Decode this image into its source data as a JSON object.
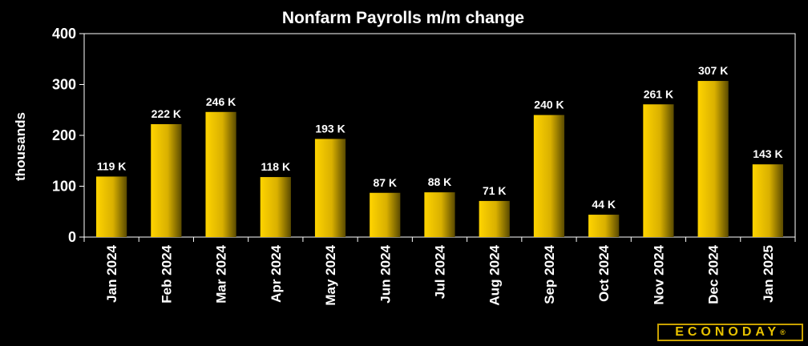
{
  "chart_data": {
    "type": "bar",
    "title": "Nonfarm Payrolls m/m change",
    "ylabel": "thousands",
    "xlabel": "",
    "ylim": [
      0,
      400
    ],
    "yticks": [
      "0",
      "100",
      "200",
      "300",
      "400"
    ],
    "categories": [
      "Jan 2024",
      "Feb 2024",
      "Mar 2024",
      "Apr 2024",
      "May 2024",
      "Jun 2024",
      "Jul 2024",
      "Aug 2024",
      "Sep 2024",
      "Oct 2024",
      "Nov 2024",
      "Dec 2024",
      "Jan 2025"
    ],
    "values": [
      119,
      222,
      246,
      118,
      193,
      87,
      88,
      71,
      240,
      44,
      261,
      307,
      143
    ],
    "data_labels": [
      "119 K",
      "222 K",
      "246 K",
      "118 K",
      "193 K",
      "87 K",
      "88 K",
      "71 K",
      "240 K",
      "44 K",
      "261 K",
      "307 K",
      "143 K"
    ],
    "grid": false,
    "colors": {
      "background": "#000000",
      "bar_light": "#ffd400",
      "bar_dark": "#5a4a00",
      "axis": "#ffffff"
    }
  },
  "brand": {
    "name": "ECONODAY",
    "mark": "®"
  }
}
